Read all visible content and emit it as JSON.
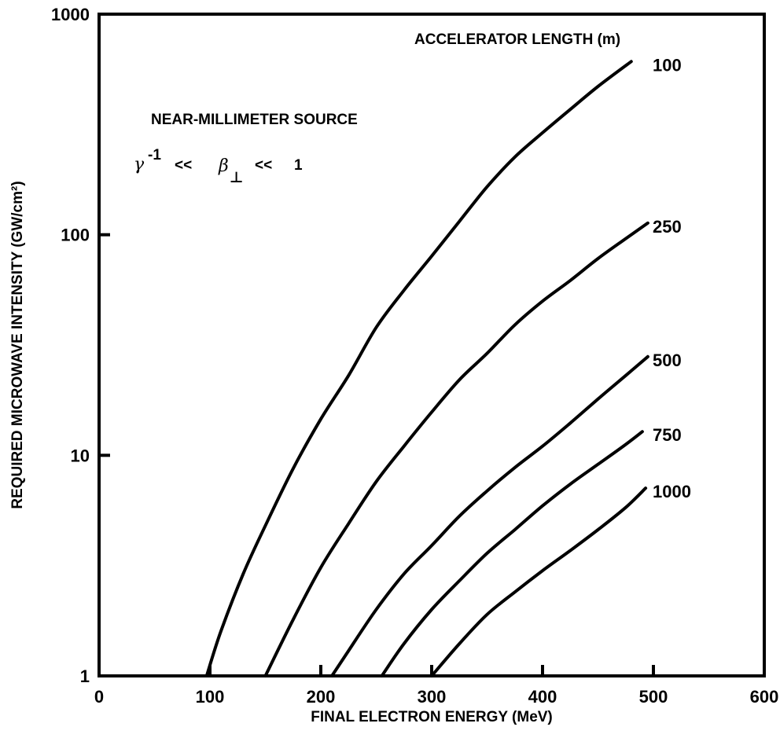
{
  "chart_data": {
    "type": "line",
    "xlabel": "FINAL ELECTRON ENERGY (MeV)",
    "ylabel": "REQUIRED MICROWAVE INTENSITY (GW/cm²)",
    "xlim": [
      0,
      600
    ],
    "ylim": [
      1,
      1000
    ],
    "yscale": "log",
    "x_ticks": [
      "0",
      "100",
      "200",
      "300",
      "400",
      "500",
      "600"
    ],
    "y_ticks": [
      "1",
      "10",
      "100",
      "1000"
    ],
    "grid": false,
    "legend_title": "ACCELERATOR LENGTH (m)",
    "annotations": {
      "source": "NEAR-MILLIMETER SOURCE",
      "condition_gamma": "γ",
      "condition_gamma_exp": "-1",
      "condition_lt1": "<<",
      "condition_beta": "β",
      "condition_perp": "⊥",
      "condition_lt2": "<<",
      "condition_one": "1"
    },
    "series": [
      {
        "name": "100",
        "x": [
          97,
          110,
          130,
          150,
          175,
          200,
          225,
          250,
          275,
          300,
          325,
          350,
          375,
          400,
          425,
          450,
          480
        ],
        "y": [
          1,
          1.6,
          2.9,
          4.8,
          8.7,
          14.6,
          23,
          38,
          56,
          80,
          115,
          165,
          225,
          290,
          370,
          470,
          610
        ]
      },
      {
        "name": "250",
        "x": [
          150,
          175,
          200,
          225,
          250,
          275,
          300,
          325,
          350,
          375,
          400,
          425,
          450,
          475,
          495
        ],
        "y": [
          1,
          1.8,
          3.1,
          4.9,
          7.6,
          11,
          15.7,
          22,
          29,
          39,
          50,
          62,
          78,
          96,
          113
        ]
      },
      {
        "name": "500",
        "x": [
          210,
          225,
          250,
          275,
          300,
          325,
          350,
          375,
          400,
          425,
          450,
          475,
          495
        ],
        "y": [
          1,
          1.3,
          2,
          2.9,
          3.9,
          5.3,
          6.9,
          8.8,
          11,
          14,
          18,
          23,
          28
        ]
      },
      {
        "name": "750",
        "x": [
          255,
          275,
          300,
          325,
          350,
          375,
          400,
          425,
          450,
          475,
          490
        ],
        "y": [
          1,
          1.4,
          2,
          2.7,
          3.6,
          4.6,
          5.9,
          7.4,
          9.1,
          11.2,
          12.8
        ]
      },
      {
        "name": "1000",
        "x": [
          300,
          325,
          350,
          375,
          400,
          425,
          450,
          475,
          493
        ],
        "y": [
          1,
          1.4,
          1.9,
          2.4,
          3.0,
          3.7,
          4.6,
          5.8,
          7.1
        ]
      }
    ]
  }
}
